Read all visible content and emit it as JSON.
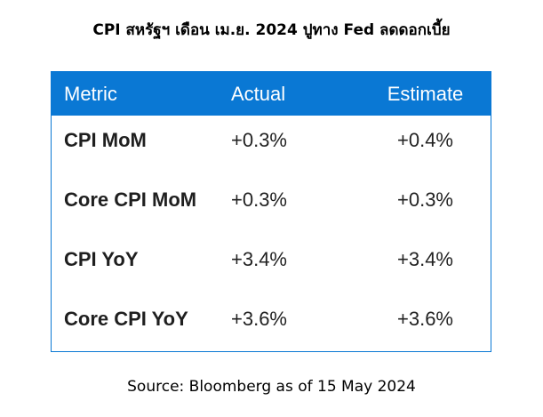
{
  "title": "CPI สหรัฐฯ เดือน เม.ย. 2024 ปูทาง Fed ลดดอกเบี้ย",
  "table": {
    "headers": {
      "metric": "Metric",
      "actual": "Actual",
      "estimate": "Estimate"
    },
    "rows": [
      {
        "metric": "CPI MoM",
        "actual": "+0.3%",
        "estimate": "+0.4%"
      },
      {
        "metric": "Core CPI MoM",
        "actual": "+0.3%",
        "estimate": "+0.3%"
      },
      {
        "metric": "CPI YoY",
        "actual": "+3.4%",
        "estimate": "+3.4%"
      },
      {
        "metric": "Core CPI YoY",
        "actual": "+3.6%",
        "estimate": "+3.6%"
      }
    ]
  },
  "source": "Source: Bloomberg as of 15 May 2024",
  "colors": {
    "header_bg": "#0a78d4",
    "header_text": "#ffffff"
  }
}
